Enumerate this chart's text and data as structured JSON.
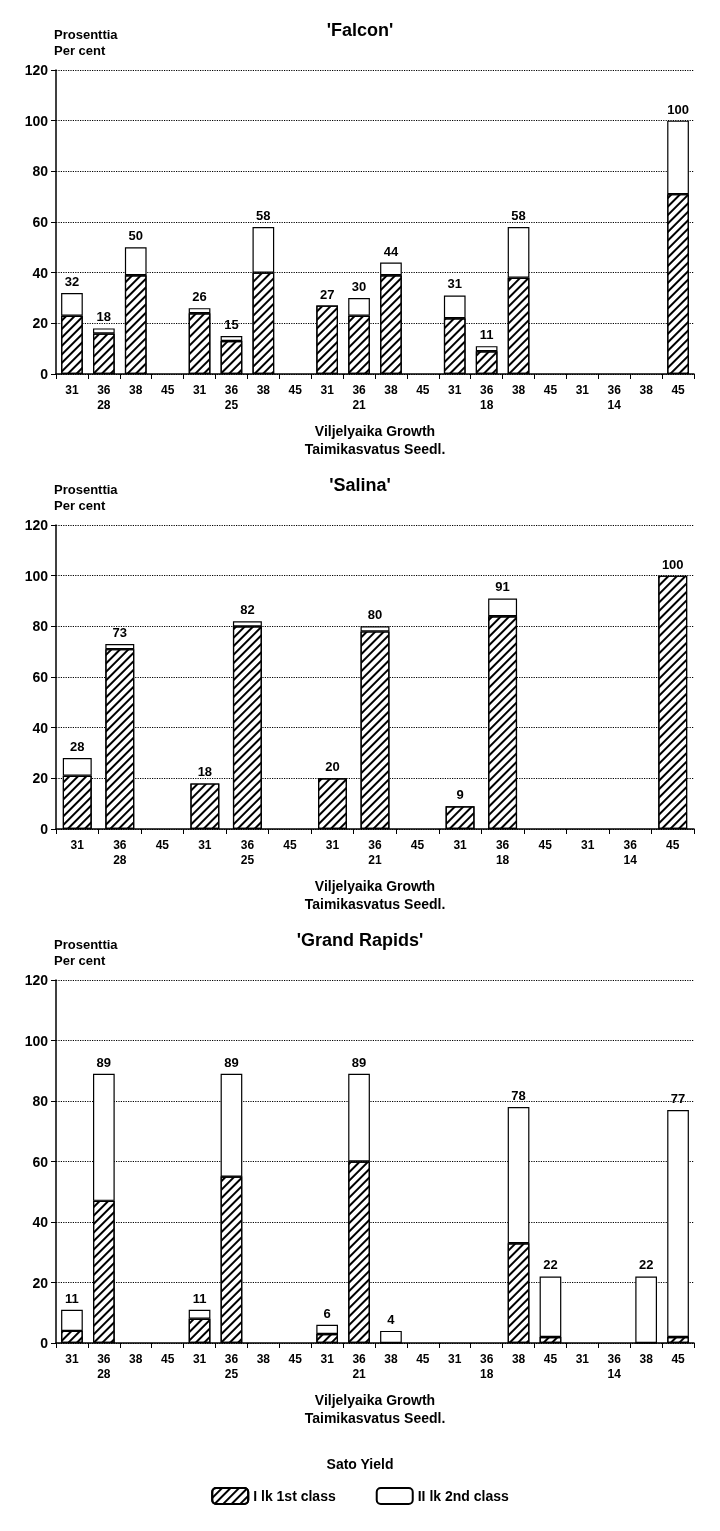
{
  "chart_data": [
    {
      "type": "bar",
      "title": "'Falcon'",
      "ylabel": "Prosenttia\nPer cent",
      "xlabel": "Viljelyaika Growth\nTaimikasvatus Seedl.",
      "categories": [
        "31",
        "36\n28",
        "38",
        "45",
        "31",
        "36\n25",
        "38",
        "45",
        "31",
        "36\n21",
        "38",
        "45",
        "31",
        "36\n18",
        "38",
        "45",
        "31",
        "36\n14",
        "38",
        "45"
      ],
      "stacked": true,
      "ylim": [
        0,
        120
      ],
      "yticks": [
        0,
        20,
        40,
        60,
        80,
        100,
        120
      ],
      "grid": "y",
      "legend": false,
      "series": [
        {
          "color": "#000000",
          "values": [
            23,
            16,
            39,
            null,
            24,
            13,
            40,
            null,
            27,
            23,
            39,
            null,
            22,
            9,
            38,
            null,
            null,
            null,
            null,
            71
          ]
        },
        {
          "color": "#ffffff",
          "values": [
            9,
            2,
            11,
            null,
            2,
            2,
            18,
            null,
            null,
            7,
            5,
            null,
            9,
            2,
            20,
            null,
            null,
            null,
            null,
            29
          ]
        }
      ],
      "totals": [
        "32",
        "18",
        "50",
        null,
        "26",
        "15",
        "58",
        null,
        "27",
        "30",
        "44",
        null,
        "31",
        "11",
        "58",
        null,
        null,
        null,
        null,
        "100"
      ]
    },
    {
      "type": "bar",
      "title": "'Salina'",
      "ylabel": "Prosenttia\nPer cent",
      "xlabel": "Viljelyaika Growth\nTaimikasvatus Seedl.",
      "categories": [
        "31",
        "36\n28",
        "45",
        "31",
        "36\n25",
        "45",
        "31",
        "36\n21",
        "45",
        "31",
        "36\n18",
        "45",
        "31",
        "36\n14",
        "45"
      ],
      "stacked": true,
      "ylim": [
        0,
        120
      ],
      "yticks": [
        0,
        20,
        40,
        60,
        80,
        100,
        120
      ],
      "grid": "y",
      "legend": false,
      "series": [
        {
          "color": "#000000",
          "values": [
            21,
            71,
            null,
            18,
            80,
            null,
            20,
            78,
            null,
            9,
            84,
            null,
            null,
            null,
            100
          ]
        },
        {
          "color": "#ffffff",
          "values": [
            7,
            2,
            null,
            null,
            2,
            null,
            null,
            2,
            null,
            null,
            7,
            null,
            null,
            null,
            null
          ]
        }
      ],
      "totals": [
        "28",
        "73",
        null,
        "18",
        "82",
        null,
        "20",
        "80",
        null,
        "9",
        "91",
        null,
        null,
        null,
        "100"
      ]
    },
    {
      "type": "bar",
      "title": "'Grand Rapids'",
      "ylabel": "Prosenttia\nPer cent",
      "xlabel": "Viljelyaika Growth\nTaimikasvatus Seedl.",
      "categories": [
        "31",
        "36\n28",
        "38",
        "45",
        "31",
        "36\n25",
        "38",
        "45",
        "31",
        "36\n21",
        "38",
        "45",
        "31",
        "36\n18",
        "38",
        "45",
        "31",
        "36\n14",
        "38",
        "45"
      ],
      "stacked": true,
      "ylim": [
        0,
        120
      ],
      "yticks": [
        0,
        20,
        40,
        60,
        80,
        100,
        120
      ],
      "grid": "y",
      "legend": "bottom",
      "legend_title": "Sato Yield",
      "series": [
        {
          "name": "I lk 1st class",
          "color": "#000000",
          "values": [
            4,
            47,
            null,
            null,
            8,
            55,
            null,
            null,
            3,
            60,
            0,
            null,
            null,
            null,
            33,
            2,
            null,
            null,
            0,
            2
          ]
        },
        {
          "name": "II lk 2nd class",
          "color": "#ffffff",
          "values": [
            7,
            42,
            null,
            null,
            3,
            34,
            null,
            null,
            3,
            29,
            4,
            null,
            null,
            null,
            45,
            20,
            null,
            null,
            22,
            75
          ]
        }
      ],
      "totals": [
        "11",
        "89",
        null,
        null,
        "11",
        "89",
        null,
        null,
        "6",
        "89",
        "4",
        null,
        null,
        null,
        "78",
        "22",
        null,
        null,
        "22",
        "77"
      ]
    }
  ]
}
